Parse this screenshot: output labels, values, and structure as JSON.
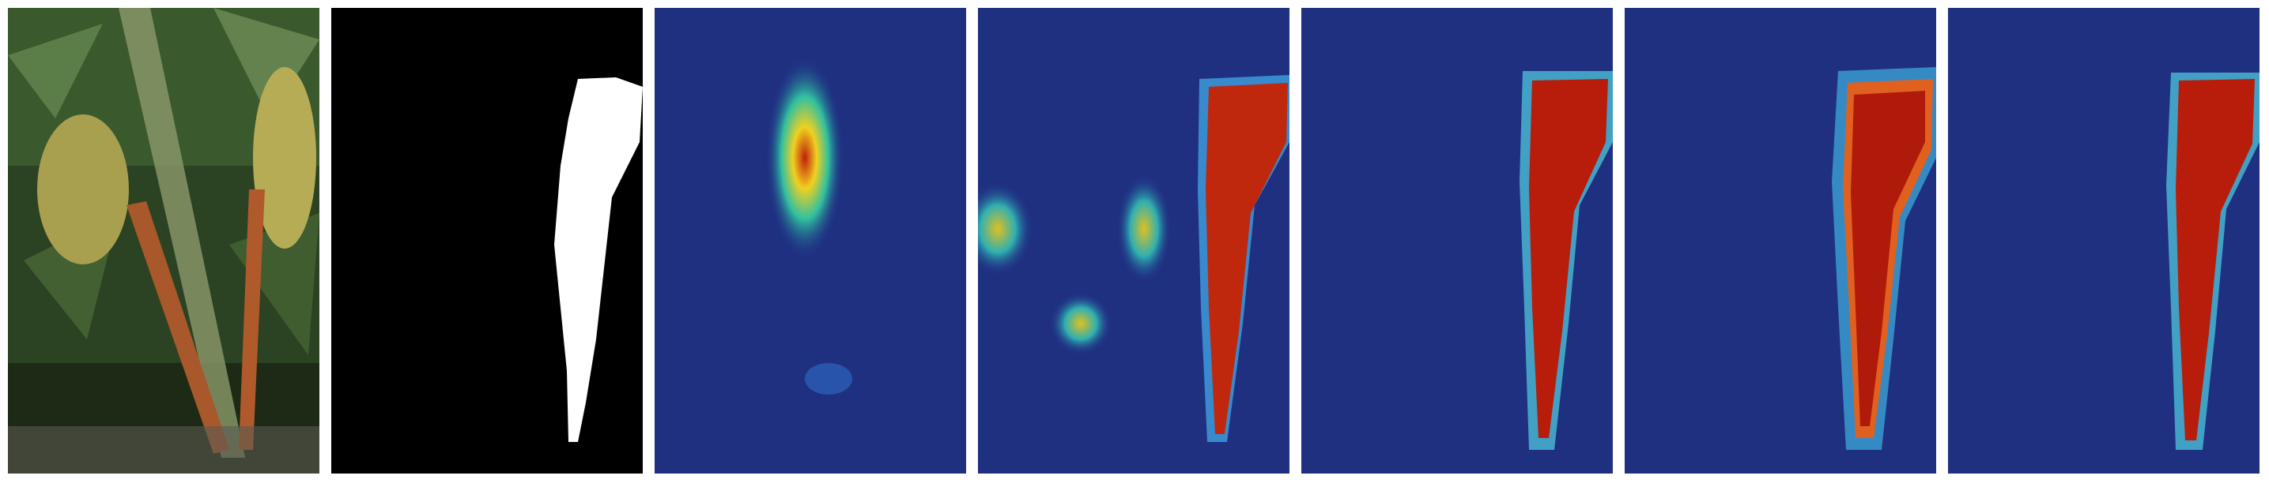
{
  "figure": {
    "panels": [
      {
        "kind": "input-photo",
        "name": "panel-input-photo"
      },
      {
        "kind": "ground-truth-mask",
        "name": "panel-ground-truth-mask"
      },
      {
        "kind": "heatmap",
        "name": "panel-heatmap-1",
        "focus": "center-leaves"
      },
      {
        "kind": "heatmap",
        "name": "panel-heatmap-2",
        "focus": "scattered-plus-right"
      },
      {
        "kind": "heatmap",
        "name": "panel-heatmap-3",
        "focus": "right-object"
      },
      {
        "kind": "heatmap",
        "name": "panel-heatmap-4",
        "focus": "right-object-diffuse"
      },
      {
        "kind": "heatmap",
        "name": "panel-heatmap-5",
        "focus": "right-object"
      }
    ],
    "colors": {
      "background": "#ffffff",
      "heatmap_base": "#1a2a8a",
      "heatmap_hot": "#b01a0a",
      "mask_fg": "#ffffff",
      "mask_bg": "#000000"
    }
  }
}
